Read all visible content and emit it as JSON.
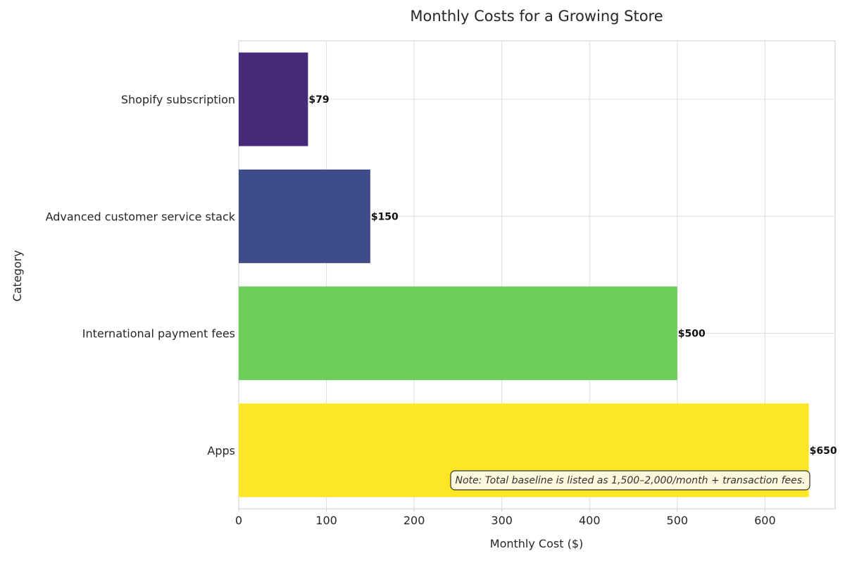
{
  "chart_data": {
    "type": "bar",
    "orientation": "horizontal",
    "title": "Monthly Costs for a Growing Store",
    "xlabel": "Monthly Cost ($)",
    "ylabel": "Category",
    "categories": [
      "Shopify subscription",
      "Advanced customer service stack",
      "International payment fees",
      "Apps"
    ],
    "values": [
      79,
      150,
      500,
      650
    ],
    "value_labels": [
      "$79",
      "$150",
      "$500",
      "$650"
    ],
    "colors": [
      "#482878",
      "#3e4c8a",
      "#6ccd5a",
      "#fde725"
    ],
    "xlim": [
      0,
      680
    ],
    "xticks": [
      0,
      100,
      200,
      300,
      400,
      500,
      600
    ],
    "grid": true,
    "annotation": "Note: Total baseline is listed as 1,500–2,000/month + transaction fees."
  }
}
